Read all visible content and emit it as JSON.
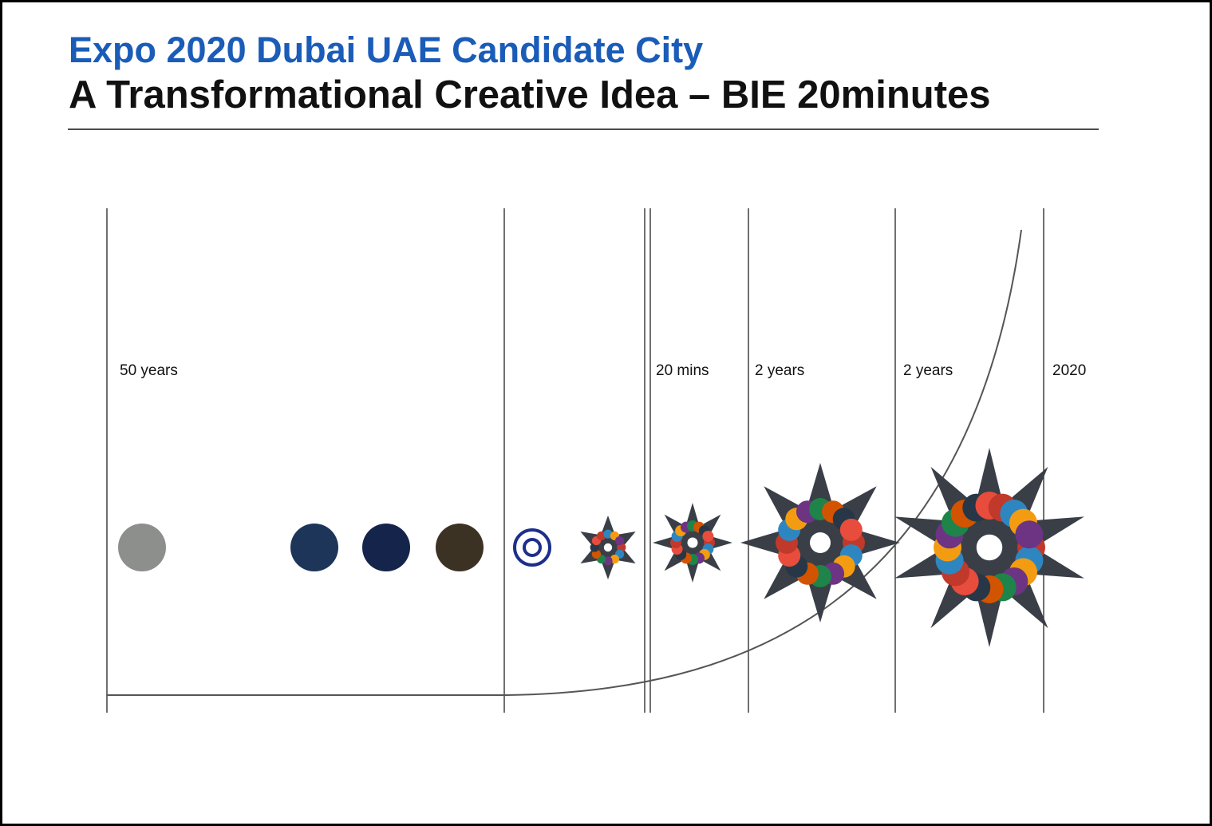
{
  "header": {
    "title": "Expo 2020 Dubai UAE Candidate City",
    "subtitle": "A Transformational Creative Idea – BIE 20minutes"
  },
  "timeline": {
    "periods": [
      {
        "label": "50 years"
      },
      {
        "label": "20 mins"
      },
      {
        "label": "2 years"
      },
      {
        "label": "2 years"
      },
      {
        "label": "2020"
      }
    ]
  }
}
